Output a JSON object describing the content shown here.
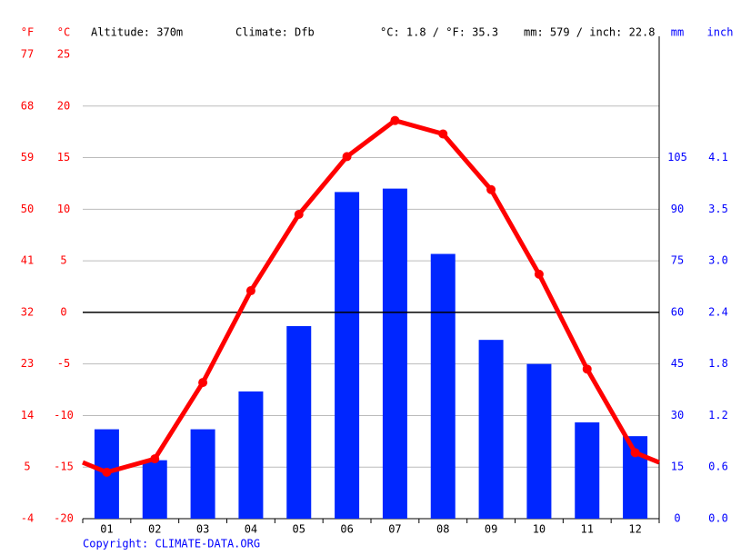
{
  "chart_data": {
    "type": "climate",
    "annotations": [
      "Altitude: 370m",
      "Climate: Dfb",
      "°C: 1.8 / °F: 35.3",
      "mm: 579 / inch: 22.8"
    ],
    "source": "Copyright: CLIMATE-DATA.ORG",
    "categories": [
      "01",
      "02",
      "03",
      "04",
      "05",
      "06",
      "07",
      "08",
      "09",
      "10",
      "11",
      "12"
    ],
    "series": [
      {
        "type": "bar",
        "axis": "y2",
        "color": "#0026ff",
        "values": [
          26,
          17,
          26,
          37,
          56,
          95,
          96,
          77,
          52,
          45,
          28,
          24
        ]
      },
      {
        "type": "line",
        "axis": "y",
        "color": "#ff0000",
        "values": [
          -15.5,
          -14.2,
          -6.8,
          2.1,
          9.5,
          15.1,
          18.6,
          17.3,
          11.9,
          3.7,
          -5.5,
          -13.6
        ]
      }
    ],
    "ylabel": "°C",
    "ylim": [
      -20,
      25
    ],
    "yticks": [
      -20,
      -15,
      -10,
      -5,
      0,
      5,
      10,
      15,
      20,
      25
    ],
    "y3label": "°F",
    "y3lim": [
      -4,
      77
    ],
    "y3ticks": [
      -4,
      5,
      14,
      23,
      32,
      41,
      50,
      59,
      68,
      77
    ],
    "y2label": "mm",
    "y2lim": [
      0,
      135
    ],
    "y2ticks": [
      0,
      15,
      30,
      45,
      60,
      75,
      90,
      105
    ],
    "y4label": "inch",
    "y4lim": [
      0,
      5.31
    ],
    "y4ticks": [
      {
        "value": 0,
        "label": "0.0"
      },
      {
        "value": 0.59,
        "label": "0.6"
      },
      {
        "value": 1.18,
        "label": "1.2"
      },
      {
        "value": 1.77,
        "label": "1.8"
      },
      {
        "value": 2.36,
        "label": "2.4"
      },
      {
        "value": 2.95,
        "label": "3.0"
      },
      {
        "value": 3.54,
        "label": "3.5"
      },
      {
        "value": 4.13,
        "label": "4.1"
      }
    ],
    "grid": true
  }
}
